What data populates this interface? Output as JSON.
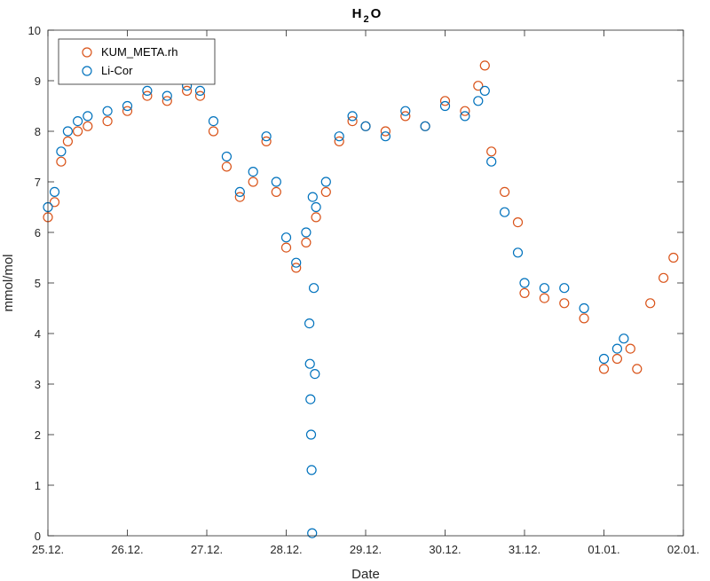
{
  "chart_data": {
    "type": "scatter",
    "title_main": "H",
    "title_sub": "2",
    "title_end": "O",
    "xlabel": "Date",
    "ylabel": "mmol/mol",
    "xlim": [
      "2020-12-25",
      "2021-01-02"
    ],
    "ylim": [
      0,
      10
    ],
    "x_ticks": [
      "25.12.",
      "26.12.",
      "27.12.",
      "28.12.",
      "29.12.",
      "30.12.",
      "31.12.",
      "01.01.",
      "02.01."
    ],
    "y_ticks": [
      "0",
      "1",
      "2",
      "3",
      "4",
      "5",
      "6",
      "7",
      "8",
      "9",
      "10"
    ],
    "legend_position": "top-left",
    "series": [
      {
        "name": "KUM_META.rh",
        "color": "#d95319",
        "marker": "open-circle",
        "points": [
          [
            "2020-12-25 00:00",
            6.3
          ],
          [
            "2020-12-25 02:00",
            6.6
          ],
          [
            "2020-12-25 04:00",
            7.4
          ],
          [
            "2020-12-25 06:00",
            7.8
          ],
          [
            "2020-12-25 09:00",
            8.0
          ],
          [
            "2020-12-25 12:00",
            8.1
          ],
          [
            "2020-12-25 18:00",
            8.2
          ],
          [
            "2020-12-26 00:00",
            8.4
          ],
          [
            "2020-12-26 06:00",
            8.7
          ],
          [
            "2020-12-26 12:00",
            8.6
          ],
          [
            "2020-12-26 18:00",
            8.8
          ],
          [
            "2020-12-26 22:00",
            8.7
          ],
          [
            "2020-12-27 02:00",
            8.0
          ],
          [
            "2020-12-27 06:00",
            7.3
          ],
          [
            "2020-12-27 10:00",
            6.7
          ],
          [
            "2020-12-27 14:00",
            7.0
          ],
          [
            "2020-12-27 18:00",
            7.8
          ],
          [
            "2020-12-27 21:00",
            6.8
          ],
          [
            "2020-12-28 00:00",
            5.7
          ],
          [
            "2020-12-28 03:00",
            5.3
          ],
          [
            "2020-12-28 06:00",
            5.8
          ],
          [
            "2020-12-28 09:00",
            6.3
          ],
          [
            "2020-12-28 12:00",
            6.8
          ],
          [
            "2020-12-28 16:00",
            7.8
          ],
          [
            "2020-12-28 20:00",
            8.2
          ],
          [
            "2020-12-29 00:00",
            8.1
          ],
          [
            "2020-12-29 06:00",
            8.0
          ],
          [
            "2020-12-29 12:00",
            8.3
          ],
          [
            "2020-12-29 18:00",
            8.1
          ],
          [
            "2020-12-30 00:00",
            8.6
          ],
          [
            "2020-12-30 06:00",
            8.4
          ],
          [
            "2020-12-30 10:00",
            8.9
          ],
          [
            "2020-12-30 12:00",
            9.3
          ],
          [
            "2020-12-30 14:00",
            7.6
          ],
          [
            "2020-12-30 18:00",
            6.8
          ],
          [
            "2020-12-30 22:00",
            6.2
          ],
          [
            "2020-12-31 00:00",
            4.8
          ],
          [
            "2020-12-31 06:00",
            4.7
          ],
          [
            "2020-12-31 12:00",
            4.6
          ],
          [
            "2020-12-31 18:00",
            4.3
          ],
          [
            "2021-01-01 00:00",
            3.3
          ],
          [
            "2021-01-01 04:00",
            3.5
          ],
          [
            "2021-01-01 08:00",
            3.7
          ],
          [
            "2021-01-01 10:00",
            3.3
          ],
          [
            "2021-01-01 14:00",
            4.6
          ],
          [
            "2021-01-01 18:00",
            5.1
          ],
          [
            "2021-01-01 21:00",
            5.5
          ]
        ]
      },
      {
        "name": "Li-Cor",
        "color": "#0072bd",
        "marker": "open-circle",
        "points": [
          [
            "2020-12-25 00:00",
            6.5
          ],
          [
            "2020-12-25 02:00",
            6.8
          ],
          [
            "2020-12-25 04:00",
            7.6
          ],
          [
            "2020-12-25 06:00",
            8.0
          ],
          [
            "2020-12-25 09:00",
            8.2
          ],
          [
            "2020-12-25 12:00",
            8.3
          ],
          [
            "2020-12-25 18:00",
            8.4
          ],
          [
            "2020-12-26 00:00",
            8.5
          ],
          [
            "2020-12-26 06:00",
            8.8
          ],
          [
            "2020-12-26 12:00",
            8.7
          ],
          [
            "2020-12-26 18:00",
            8.9
          ],
          [
            "2020-12-26 22:00",
            8.8
          ],
          [
            "2020-12-27 02:00",
            8.2
          ],
          [
            "2020-12-27 06:00",
            7.5
          ],
          [
            "2020-12-27 10:00",
            6.8
          ],
          [
            "2020-12-27 14:00",
            7.2
          ],
          [
            "2020-12-27 18:00",
            7.9
          ],
          [
            "2020-12-27 21:00",
            7.0
          ],
          [
            "2020-12-28 00:00",
            5.9
          ],
          [
            "2020-12-28 03:00",
            5.4
          ],
          [
            "2020-12-28 06:00",
            6.0
          ],
          [
            "2020-12-28 07:00",
            4.2
          ],
          [
            "2020-12-28 07:10",
            3.4
          ],
          [
            "2020-12-28 07:20",
            2.7
          ],
          [
            "2020-12-28 07:30",
            2.0
          ],
          [
            "2020-12-28 07:40",
            1.3
          ],
          [
            "2020-12-28 07:50",
            0.05
          ],
          [
            "2020-12-28 08:00",
            6.7
          ],
          [
            "2020-12-28 08:20",
            4.9
          ],
          [
            "2020-12-28 08:40",
            3.2
          ],
          [
            "2020-12-28 09:00",
            6.5
          ],
          [
            "2020-12-28 12:00",
            7.0
          ],
          [
            "2020-12-28 16:00",
            7.9
          ],
          [
            "2020-12-28 20:00",
            8.3
          ],
          [
            "2020-12-29 00:00",
            8.1
          ],
          [
            "2020-12-29 06:00",
            7.9
          ],
          [
            "2020-12-29 12:00",
            8.4
          ],
          [
            "2020-12-29 18:00",
            8.1
          ],
          [
            "2020-12-30 00:00",
            8.5
          ],
          [
            "2020-12-30 06:00",
            8.3
          ],
          [
            "2020-12-30 10:00",
            8.6
          ],
          [
            "2020-12-30 12:00",
            8.8
          ],
          [
            "2020-12-30 14:00",
            7.4
          ],
          [
            "2020-12-30 18:00",
            6.4
          ],
          [
            "2020-12-30 22:00",
            5.6
          ],
          [
            "2020-12-31 00:00",
            5.0
          ],
          [
            "2020-12-31 06:00",
            4.9
          ],
          [
            "2020-12-31 12:00",
            4.9
          ],
          [
            "2020-12-31 18:00",
            4.5
          ],
          [
            "2021-01-01 00:00",
            3.5
          ],
          [
            "2021-01-01 04:00",
            3.7
          ],
          [
            "2021-01-01 06:00",
            3.9
          ]
        ]
      }
    ]
  }
}
